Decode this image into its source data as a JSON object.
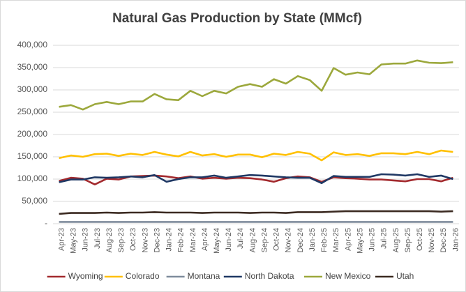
{
  "chart_data": {
    "type": "line",
    "title": "Natural Gas Production by State (MMcf)",
    "categories": [
      "Apr-23",
      "May-23",
      "Jun-23",
      "Jul-23",
      "Aug-23",
      "Sep-23",
      "Oct-23",
      "Nov-23",
      "Dec-23",
      "Jan-24",
      "Feb-24",
      "Mar-24",
      "Apr-24",
      "May-24",
      "Jun-24",
      "Jul-24",
      "Aug-24",
      "Sep-24",
      "Oct-24",
      "Nov-24",
      "Dec-24",
      "Jan-25",
      "Feb-25",
      "Mar-25",
      "Apr-25",
      "May-25",
      "Jun-25",
      "Jul-25",
      "Aug-25",
      "Sep-25",
      "Oct-25",
      "Nov-25",
      "Dec-25",
      "Jan-26"
    ],
    "series": [
      {
        "name": "Wyoming",
        "color": "#a32a2e",
        "values": [
          96000,
          103000,
          101000,
          88000,
          101000,
          99000,
          106000,
          107000,
          108000,
          106000,
          102000,
          106000,
          101000,
          103000,
          101000,
          103000,
          102000,
          99000,
          94000,
          102000,
          106000,
          104000,
          94000,
          104000,
          102000,
          101000,
          99000,
          99000,
          97000,
          95000,
          100000,
          100000,
          95000,
          103000
        ]
      },
      {
        "name": "Colorado",
        "color": "#ffc000",
        "values": [
          147000,
          153000,
          150000,
          156000,
          157000,
          152000,
          157000,
          154000,
          161000,
          155000,
          151000,
          161000,
          153000,
          156000,
          150000,
          155000,
          155000,
          149000,
          157000,
          154000,
          161000,
          157000,
          142000,
          160000,
          154000,
          156000,
          152000,
          158000,
          158000,
          156000,
          161000,
          156000,
          164000,
          161000
        ]
      },
      {
        "name": "Montana",
        "color": "#7f8c9c",
        "values": [
          4000,
          4000,
          4000,
          4000,
          4000,
          4000,
          4000,
          4000,
          4000,
          4000,
          4000,
          4000,
          4000,
          4000,
          4000,
          4000,
          4000,
          4000,
          4000,
          4000,
          4000,
          4000,
          4000,
          4000,
          4000,
          4000,
          4000,
          4000,
          4000,
          4000,
          4000,
          4000,
          4000,
          4000
        ]
      },
      {
        "name": "North Dakota",
        "color": "#1f3864",
        "values": [
          93000,
          99000,
          99000,
          104000,
          103000,
          104000,
          106000,
          104000,
          109000,
          94000,
          100000,
          104000,
          104000,
          108000,
          103000,
          106000,
          109000,
          108000,
          106000,
          104000,
          103000,
          103000,
          91000,
          107000,
          105000,
          105000,
          105000,
          111000,
          110000,
          108000,
          111000,
          105000,
          108000,
          100000
        ]
      },
      {
        "name": "New Mexico",
        "color": "#9ca83c",
        "values": [
          262000,
          266000,
          256000,
          268000,
          273000,
          268000,
          274000,
          274000,
          291000,
          279000,
          277000,
          298000,
          286000,
          298000,
          292000,
          307000,
          313000,
          307000,
          324000,
          314000,
          331000,
          322000,
          298000,
          349000,
          334000,
          339000,
          335000,
          357000,
          359000,
          359000,
          366000,
          361000,
          360000,
          362000
        ]
      },
      {
        "name": "Utah",
        "color": "#3b2a21",
        "values": [
          22000,
          24000,
          24000,
          24000,
          25000,
          24000,
          25000,
          25000,
          26000,
          25000,
          25000,
          25000,
          24000,
          25000,
          25000,
          25000,
          24000,
          25000,
          25000,
          24000,
          26000,
          26000,
          26000,
          27000,
          28000,
          28000,
          28000,
          28000,
          28000,
          28000,
          28000,
          28000,
          27000,
          28000
        ]
      }
    ],
    "ylim": [
      0,
      400000
    ],
    "yticks": [
      {
        "value": 0,
        "label": "-"
      },
      {
        "value": 50000,
        "label": "50,000"
      },
      {
        "value": 100000,
        "label": "100,000"
      },
      {
        "value": 150000,
        "label": "150,000"
      },
      {
        "value": 200000,
        "label": "200,000"
      },
      {
        "value": 250000,
        "label": "250,000"
      },
      {
        "value": 300000,
        "label": "300,000"
      },
      {
        "value": 350000,
        "label": "350,000"
      },
      {
        "value": 400000,
        "label": "400,000"
      }
    ],
    "grid": true,
    "legend": "bottom"
  }
}
